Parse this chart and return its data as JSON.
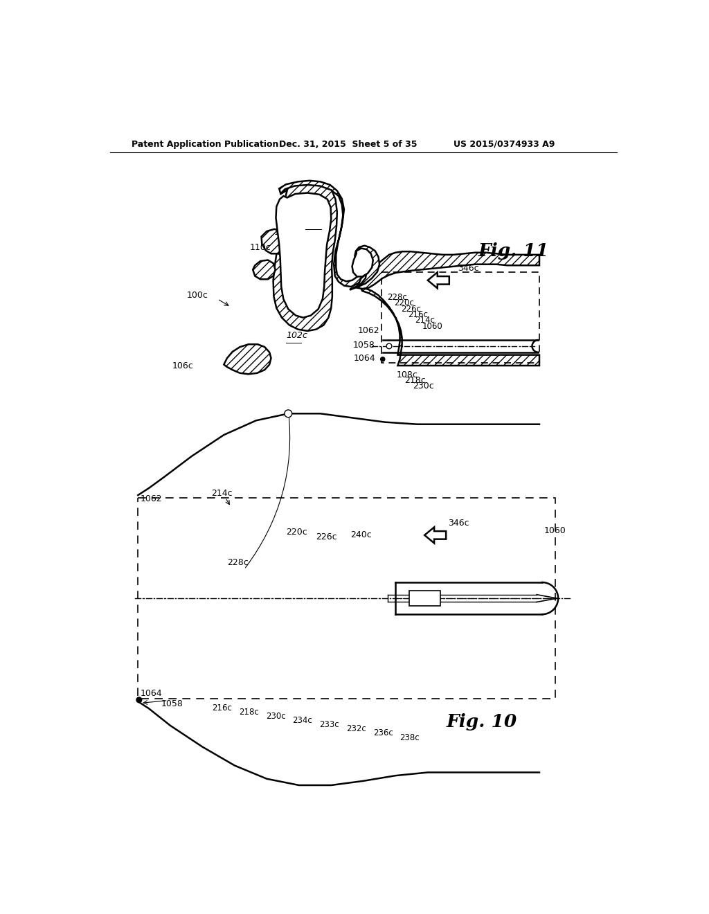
{
  "bg_color": "#ffffff",
  "header_left": "Patent Application Publication",
  "header_center": "Dec. 31, 2015  Sheet 5 of 35",
  "header_right": "US 2015/0374933 A9",
  "fig11_label": "Fig. 11",
  "fig10_label": "Fig. 10"
}
